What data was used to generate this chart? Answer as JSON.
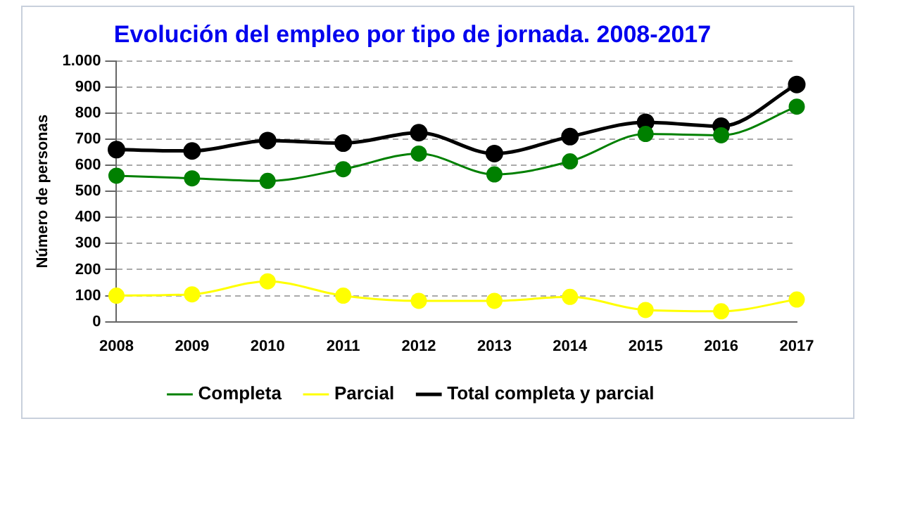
{
  "chart_data": {
    "type": "line",
    "title": "Evolución del empleo por tipo de jornada. 2008-2017",
    "ylabel": "Número de personas",
    "categories": [
      "2008",
      "2009",
      "2010",
      "2011",
      "2012",
      "2013",
      "2014",
      "2015",
      "2016",
      "2017"
    ],
    "series": [
      {
        "name": "Completa",
        "color": "#008000",
        "values": [
          560,
          550,
          540,
          585,
          645,
          565,
          615,
          720,
          715,
          825
        ]
      },
      {
        "name": "Parcial",
        "color": "#ffff00",
        "values": [
          100,
          105,
          155,
          100,
          80,
          80,
          95,
          45,
          40,
          85
        ]
      },
      {
        "name": "Total completa y parcial",
        "color": "#000000",
        "values": [
          660,
          655,
          695,
          685,
          725,
          645,
          710,
          765,
          750,
          910
        ]
      }
    ],
    "ylim": [
      0,
      1000
    ],
    "yticks": [
      0,
      {
        "value": 100,
        "label": "100"
      },
      200,
      300,
      400,
      500,
      600,
      700,
      800,
      900,
      {
        "value": 1000,
        "label": "1.000"
      }
    ],
    "grid": "y",
    "legend": "bottom",
    "marker": "circle",
    "line_style": "solid"
  }
}
